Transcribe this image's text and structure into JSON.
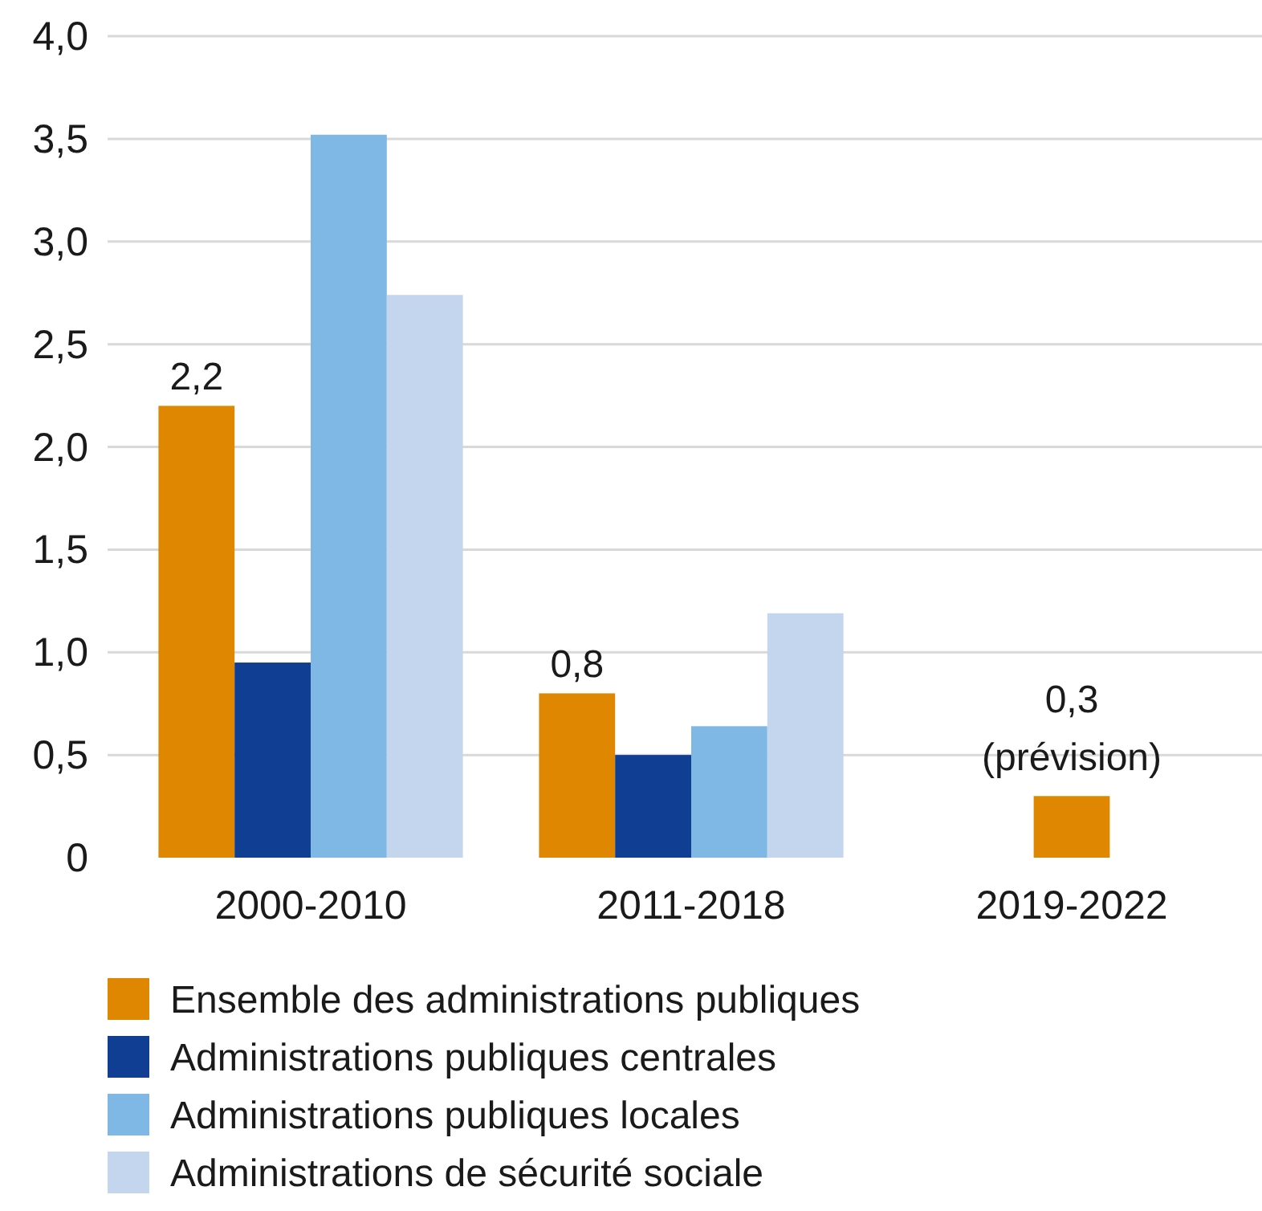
{
  "chart_data": {
    "type": "bar",
    "categories": [
      "2000-2010",
      "2011-2018",
      "2019-2022"
    ],
    "series": [
      {
        "name": "Ensemble des administrations publiques",
        "color": "#e08700",
        "values": [
          2.2,
          0.8,
          0.3
        ],
        "value_labels": [
          "2,2",
          "0,8",
          "0,3"
        ]
      },
      {
        "name": "Administrations publiques centrales",
        "color": "#103e92",
        "values": [
          0.95,
          0.5,
          null
        ]
      },
      {
        "name": "Administrations publiques locales",
        "color": "#7fb8e5",
        "values": [
          3.52,
          0.64,
          null
        ]
      },
      {
        "name": "Administrations de sécurité sociale",
        "color": "#c4d6ee",
        "values": [
          2.74,
          1.19,
          null
        ]
      }
    ],
    "ylim": [
      0,
      4
    ],
    "yticks": [
      0,
      {
        "value": 0.5,
        "label": "0,5"
      },
      {
        "value": 1,
        "label": "1,0"
      },
      {
        "value": 1.5,
        "label": "1,5"
      },
      {
        "value": 2,
        "label": "2,0"
      },
      {
        "value": 2.5,
        "label": "2,5"
      },
      {
        "value": 3,
        "label": "3,0"
      },
      {
        "value": 3.5,
        "label": "3,5"
      },
      {
        "value": 4,
        "label": "4,0"
      }
    ],
    "grid": "y",
    "legend": "bottom",
    "annotations": [
      {
        "text": "(prévision)",
        "x": "2019-2022",
        "y": 0.3
      }
    ]
  }
}
